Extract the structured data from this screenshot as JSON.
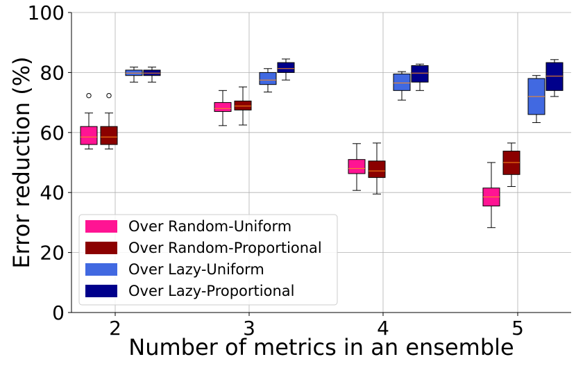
{
  "chart_data": {
    "type": "box",
    "xlabel": "Number of metrics in an ensemble",
    "ylabel": "Error reduction (%)",
    "categories": [
      "2",
      "3",
      "4",
      "5"
    ],
    "ylim": [
      0,
      100
    ],
    "yticks": [
      0,
      20,
      40,
      60,
      80,
      100
    ],
    "grid": true,
    "legend_position": "lower-left",
    "series": [
      {
        "name": "Over Random-Uniform",
        "color": "#ff1493",
        "boxes": [
          {
            "whisker_low": 54.5,
            "q1": 56.0,
            "median": 58.5,
            "q3": 62.0,
            "whisker_high": 66.5,
            "outliers": [
              72.3
            ]
          },
          {
            "whisker_low": 62.3,
            "q1": 67.0,
            "median": 68.0,
            "q3": 70.0,
            "whisker_high": 74.0,
            "outliers": []
          },
          {
            "whisker_low": 40.7,
            "q1": 46.3,
            "median": 48.0,
            "q3": 51.0,
            "whisker_high": 56.3,
            "outliers": []
          },
          {
            "whisker_low": 28.3,
            "q1": 35.5,
            "median": 38.5,
            "q3": 41.5,
            "whisker_high": 50.0,
            "outliers": []
          }
        ]
      },
      {
        "name": "Over Random-Proportional",
        "color": "#8b0000",
        "boxes": [
          {
            "whisker_low": 54.5,
            "q1": 56.0,
            "median": 58.5,
            "q3": 62.0,
            "whisker_high": 66.5,
            "outliers": [
              72.3
            ]
          },
          {
            "whisker_low": 62.5,
            "q1": 67.5,
            "median": 68.8,
            "q3": 70.5,
            "whisker_high": 75.2,
            "outliers": []
          },
          {
            "whisker_low": 39.5,
            "q1": 45.0,
            "median": 47.2,
            "q3": 50.5,
            "whisker_high": 56.5,
            "outliers": []
          },
          {
            "whisker_low": 42.0,
            "q1": 46.0,
            "median": 50.0,
            "q3": 53.8,
            "whisker_high": 56.5,
            "outliers": []
          }
        ]
      },
      {
        "name": "Over Lazy-Uniform",
        "color": "#4169e1",
        "boxes": [
          {
            "whisker_low": 76.8,
            "q1": 79.0,
            "median": 79.8,
            "q3": 80.8,
            "whisker_high": 81.8,
            "outliers": []
          },
          {
            "whisker_low": 73.5,
            "q1": 76.0,
            "median": 77.5,
            "q3": 80.0,
            "whisker_high": 81.3,
            "outliers": []
          },
          {
            "whisker_low": 70.8,
            "q1": 74.0,
            "median": 76.5,
            "q3": 79.5,
            "whisker_high": 80.3,
            "outliers": []
          },
          {
            "whisker_low": 63.3,
            "q1": 66.0,
            "median": 72.0,
            "q3": 78.0,
            "whisker_high": 79.0,
            "outliers": []
          }
        ]
      },
      {
        "name": "Over Lazy-Proportional",
        "color": "#00008b",
        "boxes": [
          {
            "whisker_low": 76.8,
            "q1": 79.0,
            "median": 79.8,
            "q3": 80.8,
            "whisker_high": 81.8,
            "outliers": []
          },
          {
            "whisker_low": 77.5,
            "q1": 80.0,
            "median": 81.3,
            "q3": 83.3,
            "whisker_high": 84.5,
            "outliers": []
          },
          {
            "whisker_low": 74.0,
            "q1": 76.8,
            "median": 79.8,
            "q3": 82.3,
            "whisker_high": 82.8,
            "outliers": []
          },
          {
            "whisker_low": 72.0,
            "q1": 74.0,
            "median": 78.8,
            "q3": 83.3,
            "whisker_high": 84.3,
            "outliers": []
          }
        ]
      }
    ]
  }
}
